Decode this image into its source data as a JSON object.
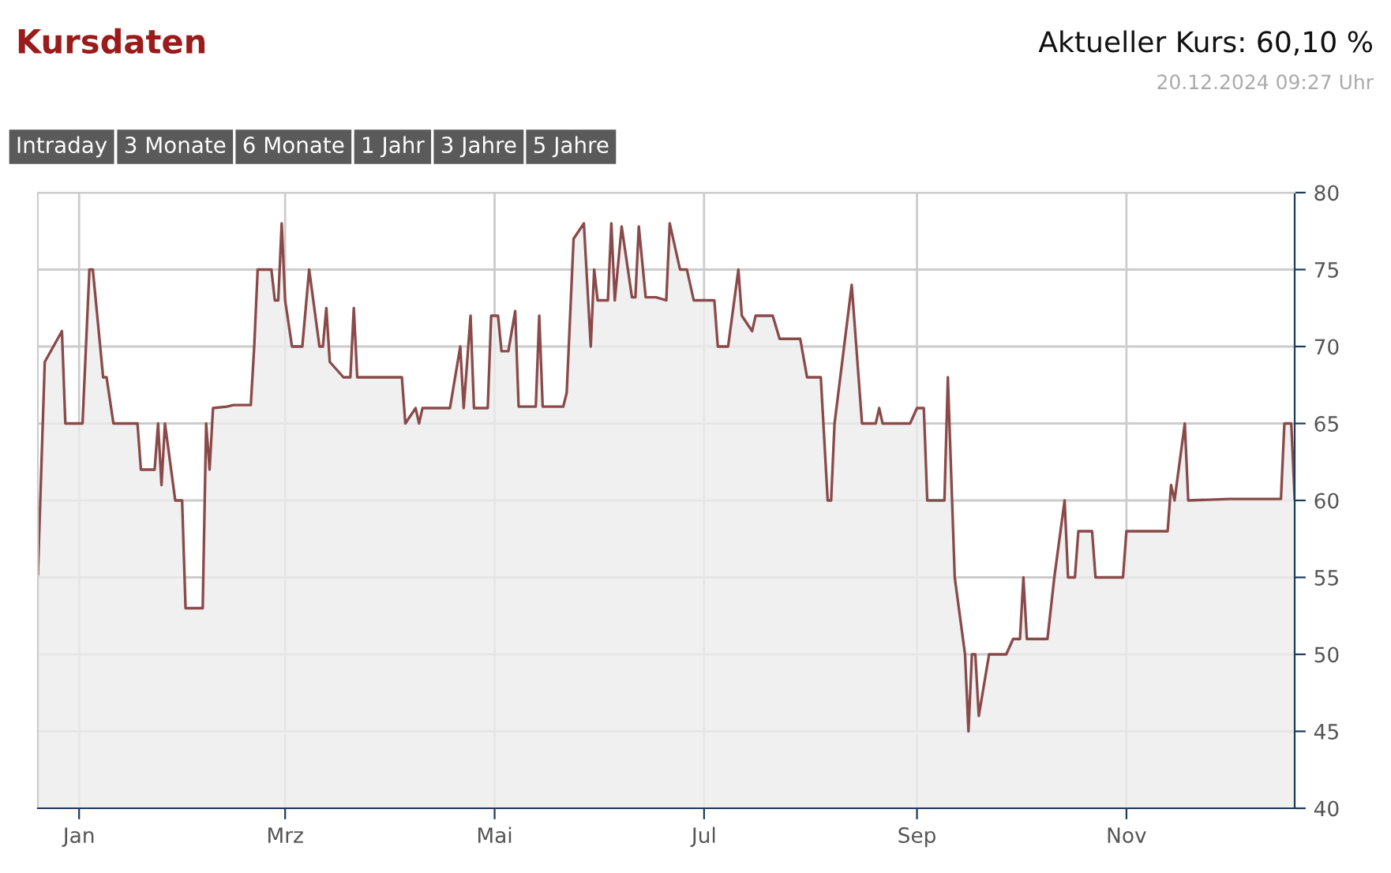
{
  "chart_data": {
    "type": "area",
    "title": "Kursdaten",
    "subtitle": "Aktueller Kurs: 60,10 %",
    "annotations": [
      "20.12.2024 09:27 Uhr",
      "Intraday",
      "3 Monate",
      "6 Monate",
      "1 Jahr",
      "3 Jahre",
      "5 Jahre"
    ],
    "x": [
      "2023-12-20",
      "2023-12-22",
      "2023-12-27",
      "2023-12-28",
      "2024-01-02",
      "2024-01-04",
      "2024-01-05",
      "2024-01-08",
      "2024-01-09",
      "2024-01-11",
      "2024-01-18",
      "2024-01-19",
      "2024-01-23",
      "2024-01-24",
      "2024-01-25",
      "2024-01-26",
      "2024-01-29",
      "2024-01-31",
      "2024-02-01",
      "2024-02-06",
      "2024-02-07",
      "2024-02-08",
      "2024-02-09",
      "2024-02-13",
      "2024-02-15",
      "2024-02-20",
      "2024-02-21",
      "2024-02-22",
      "2024-02-26",
      "2024-02-27",
      "2024-02-28",
      "2024-02-29",
      "2024-03-01",
      "2024-03-03",
      "2024-03-06",
      "2024-03-08",
      "2024-03-11",
      "2024-03-12",
      "2024-03-13",
      "2024-03-14",
      "2024-03-18",
      "2024-03-20",
      "2024-03-21",
      "2024-03-22",
      "2024-04-04",
      "2024-04-05",
      "2024-04-08",
      "2024-04-09",
      "2024-04-10",
      "2024-04-18",
      "2024-04-21",
      "2024-04-22",
      "2024-04-24",
      "2024-04-25",
      "2024-04-29",
      "2024-04-30",
      "2024-05-02",
      "2024-05-03",
      "2024-05-05",
      "2024-05-07",
      "2024-05-08",
      "2024-05-13",
      "2024-05-14",
      "2024-05-15",
      "2024-05-21",
      "2024-05-22",
      "2024-05-24",
      "2024-05-27",
      "2024-05-29",
      "2024-05-30",
      "2024-05-31",
      "2024-06-03",
      "2024-06-04",
      "2024-06-05",
      "2024-06-07",
      "2024-06-10",
      "2024-06-11",
      "2024-06-12",
      "2024-06-14",
      "2024-06-17",
      "2024-06-20",
      "2024-06-21",
      "2024-06-24",
      "2024-06-26",
      "2024-06-28",
      "2024-07-04",
      "2024-07-05",
      "2024-07-08",
      "2024-07-11",
      "2024-07-12",
      "2024-07-15",
      "2024-07-16",
      "2024-07-21",
      "2024-07-23",
      "2024-07-29",
      "2024-07-31",
      "2024-08-04",
      "2024-08-06",
      "2024-08-07",
      "2024-08-08",
      "2024-08-13",
      "2024-08-16",
      "2024-08-20",
      "2024-08-21",
      "2024-08-22",
      "2024-08-30",
      "2024-09-01",
      "2024-09-03",
      "2024-09-04",
      "2024-09-09",
      "2024-09-10",
      "2024-09-12",
      "2024-09-15",
      "2024-09-16",
      "2024-09-17",
      "2024-09-18",
      "2024-09-19",
      "2024-09-22",
      "2024-09-27",
      "2024-09-29",
      "2024-10-01",
      "2024-10-02",
      "2024-10-03",
      "2024-10-09",
      "2024-10-11",
      "2024-10-14",
      "2024-10-15",
      "2024-10-17",
      "2024-10-18",
      "2024-10-22",
      "2024-10-23",
      "2024-10-31",
      "2024-11-01",
      "2024-11-13",
      "2024-11-14",
      "2024-11-15",
      "2024-11-18",
      "2024-11-19",
      "2024-12-01",
      "2024-12-16",
      "2024-12-17",
      "2024-12-19",
      "2024-12-20"
    ],
    "series": [
      {
        "color": "#8b4a4a",
        "values": [
          55.2,
          69,
          71,
          65,
          65,
          75,
          75,
          68,
          68,
          65,
          65,
          62,
          62,
          65,
          61,
          65,
          60,
          60,
          53,
          53,
          65,
          62,
          66,
          66.1,
          66.2,
          66.2,
          70,
          75,
          75,
          73,
          73,
          78,
          73,
          70,
          70,
          75,
          70,
          70,
          72.5,
          69,
          68,
          68,
          72.5,
          68,
          68,
          65,
          66,
          65,
          66,
          66,
          70,
          66,
          72,
          66,
          66,
          72,
          72,
          69.7,
          69.7,
          72.3,
          66.1,
          66.1,
          72,
          66.1,
          66.1,
          67,
          77,
          78,
          70,
          75,
          73,
          73,
          78,
          73,
          77.8,
          73.2,
          73.2,
          77.8,
          73.2,
          73.2,
          73,
          78,
          75,
          75,
          73,
          73,
          70,
          70,
          75,
          72,
          71,
          72,
          72,
          70.5,
          70.5,
          68,
          68,
          60,
          60,
          65,
          74,
          65,
          65,
          66,
          65,
          65,
          66,
          66,
          60,
          60,
          68,
          55,
          50,
          45,
          50,
          50,
          46,
          50,
          50,
          51,
          51,
          55,
          51,
          51,
          55,
          60,
          55,
          55,
          58,
          58,
          55,
          55,
          58,
          58,
          61,
          60,
          65,
          60,
          60.1,
          60.1,
          65,
          65,
          60.1
        ]
      }
    ],
    "xlim": [
      "2023-12-20",
      "2024-12-20"
    ],
    "xticks": [
      {
        "value": "2024-01-01",
        "label": "Jan"
      },
      {
        "value": "2024-03-01",
        "label": "Mrz"
      },
      {
        "value": "2024-05-01",
        "label": "Mai"
      },
      {
        "value": "2024-07-01",
        "label": "Jul"
      },
      {
        "value": "2024-09-01",
        "label": "Sep"
      },
      {
        "value": "2024-11-01",
        "label": "Nov"
      }
    ],
    "ylim": [
      40,
      80
    ],
    "yticks": [
      40,
      45,
      50,
      55,
      60,
      65,
      70,
      75,
      80
    ],
    "grid": true,
    "marker": "none",
    "line_style": "solid"
  }
}
